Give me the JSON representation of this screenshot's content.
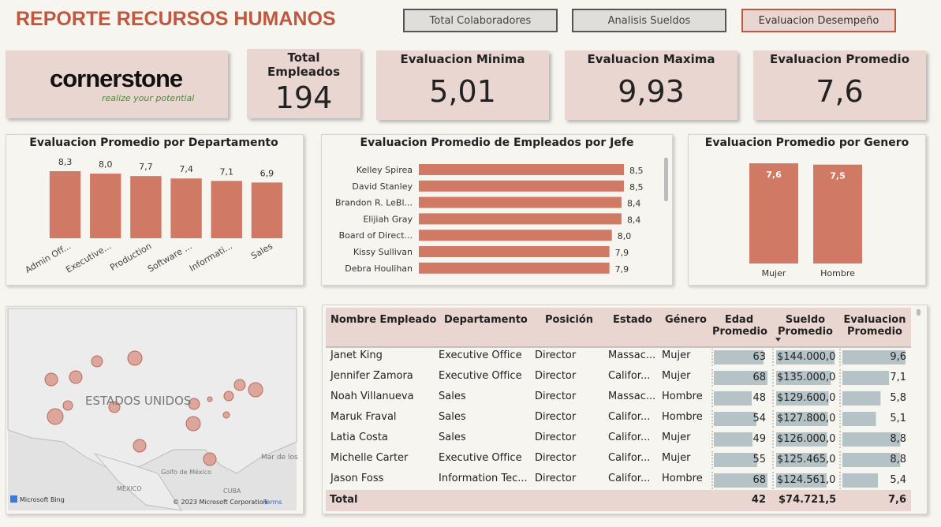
{
  "header": {
    "title": "REPORTE RECURSOS HUMANOS",
    "buttons": [
      "Total Colaboradores",
      "Analisis Sueldos",
      "Evaluacion Desempeño"
    ]
  },
  "logo": {
    "name": "cornerstone",
    "tagline": "realize your potential"
  },
  "kpis": [
    {
      "label": "Total Empleados",
      "value": "194"
    },
    {
      "label": "Evaluacion Minima",
      "value": "5,01"
    },
    {
      "label": "Evaluacion Maxima",
      "value": "9,93"
    },
    {
      "label": "Evaluacion Promedio",
      "value": "7,6"
    }
  ],
  "chart_data": [
    {
      "type": "bar",
      "title": "Evaluacion Promedio por Departamento",
      "categories": [
        "Admin Off...",
        "Executive...",
        "Production",
        "Software ...",
        "Informati...",
        "Sales"
      ],
      "values": [
        8.3,
        8.0,
        7.7,
        7.4,
        7.1,
        6.9
      ],
      "value_labels": [
        "8,3",
        "8,0",
        "7,7",
        "7,4",
        "7,1",
        "6,9"
      ],
      "color": "#d07a66"
    },
    {
      "type": "hbar",
      "title": "Evaluacion Promedio de Empleados por Jefe",
      "categories": [
        "Kelley Spirea",
        "David Stanley",
        "Brandon R. LeBl...",
        "Elijiah Gray",
        "Board of Direct...",
        "Kissy Sullivan",
        "Debra Houlihan"
      ],
      "values": [
        8.5,
        8.5,
        8.4,
        8.4,
        8.0,
        7.9,
        7.9
      ],
      "value_labels": [
        "8,5",
        "8,5",
        "8,4",
        "8,4",
        "8,0",
        "7,9",
        "7,9"
      ],
      "color": "#d07a66"
    },
    {
      "type": "bar",
      "title": "Evaluacion Promedio por Genero",
      "categories": [
        "Mujer",
        "Hombre"
      ],
      "values": [
        7.6,
        7.5
      ],
      "value_labels": [
        "7,6",
        "7,5"
      ],
      "color": "#d07a66"
    }
  ],
  "map": {
    "labels": [
      "ESTADOS UNIDOS",
      "Mar de los",
      "Golfo de México",
      "MÉXICO",
      "CUBA"
    ],
    "brand": "Microsoft Bing",
    "copyright": "© 2023 Microsoft Corporation",
    "terms": "Terms"
  },
  "table": {
    "columns": [
      "Nombre Empleado",
      "Departamento",
      "Posición",
      "Estado",
      "Género",
      "Edad Promedio",
      "Sueldo Promedio",
      "Evaluacion Promedio"
    ],
    "rows": [
      [
        "Janet King",
        "Executive Office",
        "Director",
        "Massac...",
        "Mujer",
        63,
        {
          "value": 144000,
          "label": "$144.000,0"
        },
        {
          "value": 9.6,
          "label": "9,6"
        }
      ],
      [
        "Jennifer Zamora",
        "Executive Office",
        "Director",
        "Califor...",
        "Mujer",
        68,
        {
          "value": 135000,
          "label": "$135.000,0"
        },
        {
          "value": 7.1,
          "label": "7,1"
        }
      ],
      [
        "Noah Villanueva",
        "Sales",
        "Director",
        "Massac...",
        "Hombre",
        48,
        {
          "value": 129600,
          "label": "$129.600,0"
        },
        {
          "value": 5.8,
          "label": "5,8"
        }
      ],
      [
        "Maruk Fraval",
        "Sales",
        "Director",
        "Califor...",
        "Hombre",
        54,
        {
          "value": 127800,
          "label": "$127.800,0"
        },
        {
          "value": 5.1,
          "label": "5,1"
        }
      ],
      [
        "Latia Costa",
        "Sales",
        "Director",
        "Califor...",
        "Mujer",
        49,
        {
          "value": 126000,
          "label": "$126.000,0"
        },
        {
          "value": 8.8,
          "label": "8,8"
        }
      ],
      [
        "Michelle Carter",
        "Executive Office",
        "Director",
        "Califor...",
        "Mujer",
        55,
        {
          "value": 125465,
          "label": "$125.465,0"
        },
        {
          "value": 8.8,
          "label": "8,8"
        }
      ],
      [
        "Jason Foss",
        "Information Tec...",
        "Director",
        "Califor...",
        "Hombre",
        68,
        {
          "value": 124561,
          "label": "$124.561,0"
        },
        {
          "value": 5.4,
          "label": "5,4"
        }
      ]
    ],
    "total": {
      "label": "Total",
      "age": 42,
      "salary": "$74.721,5",
      "rating": "7,6"
    }
  }
}
